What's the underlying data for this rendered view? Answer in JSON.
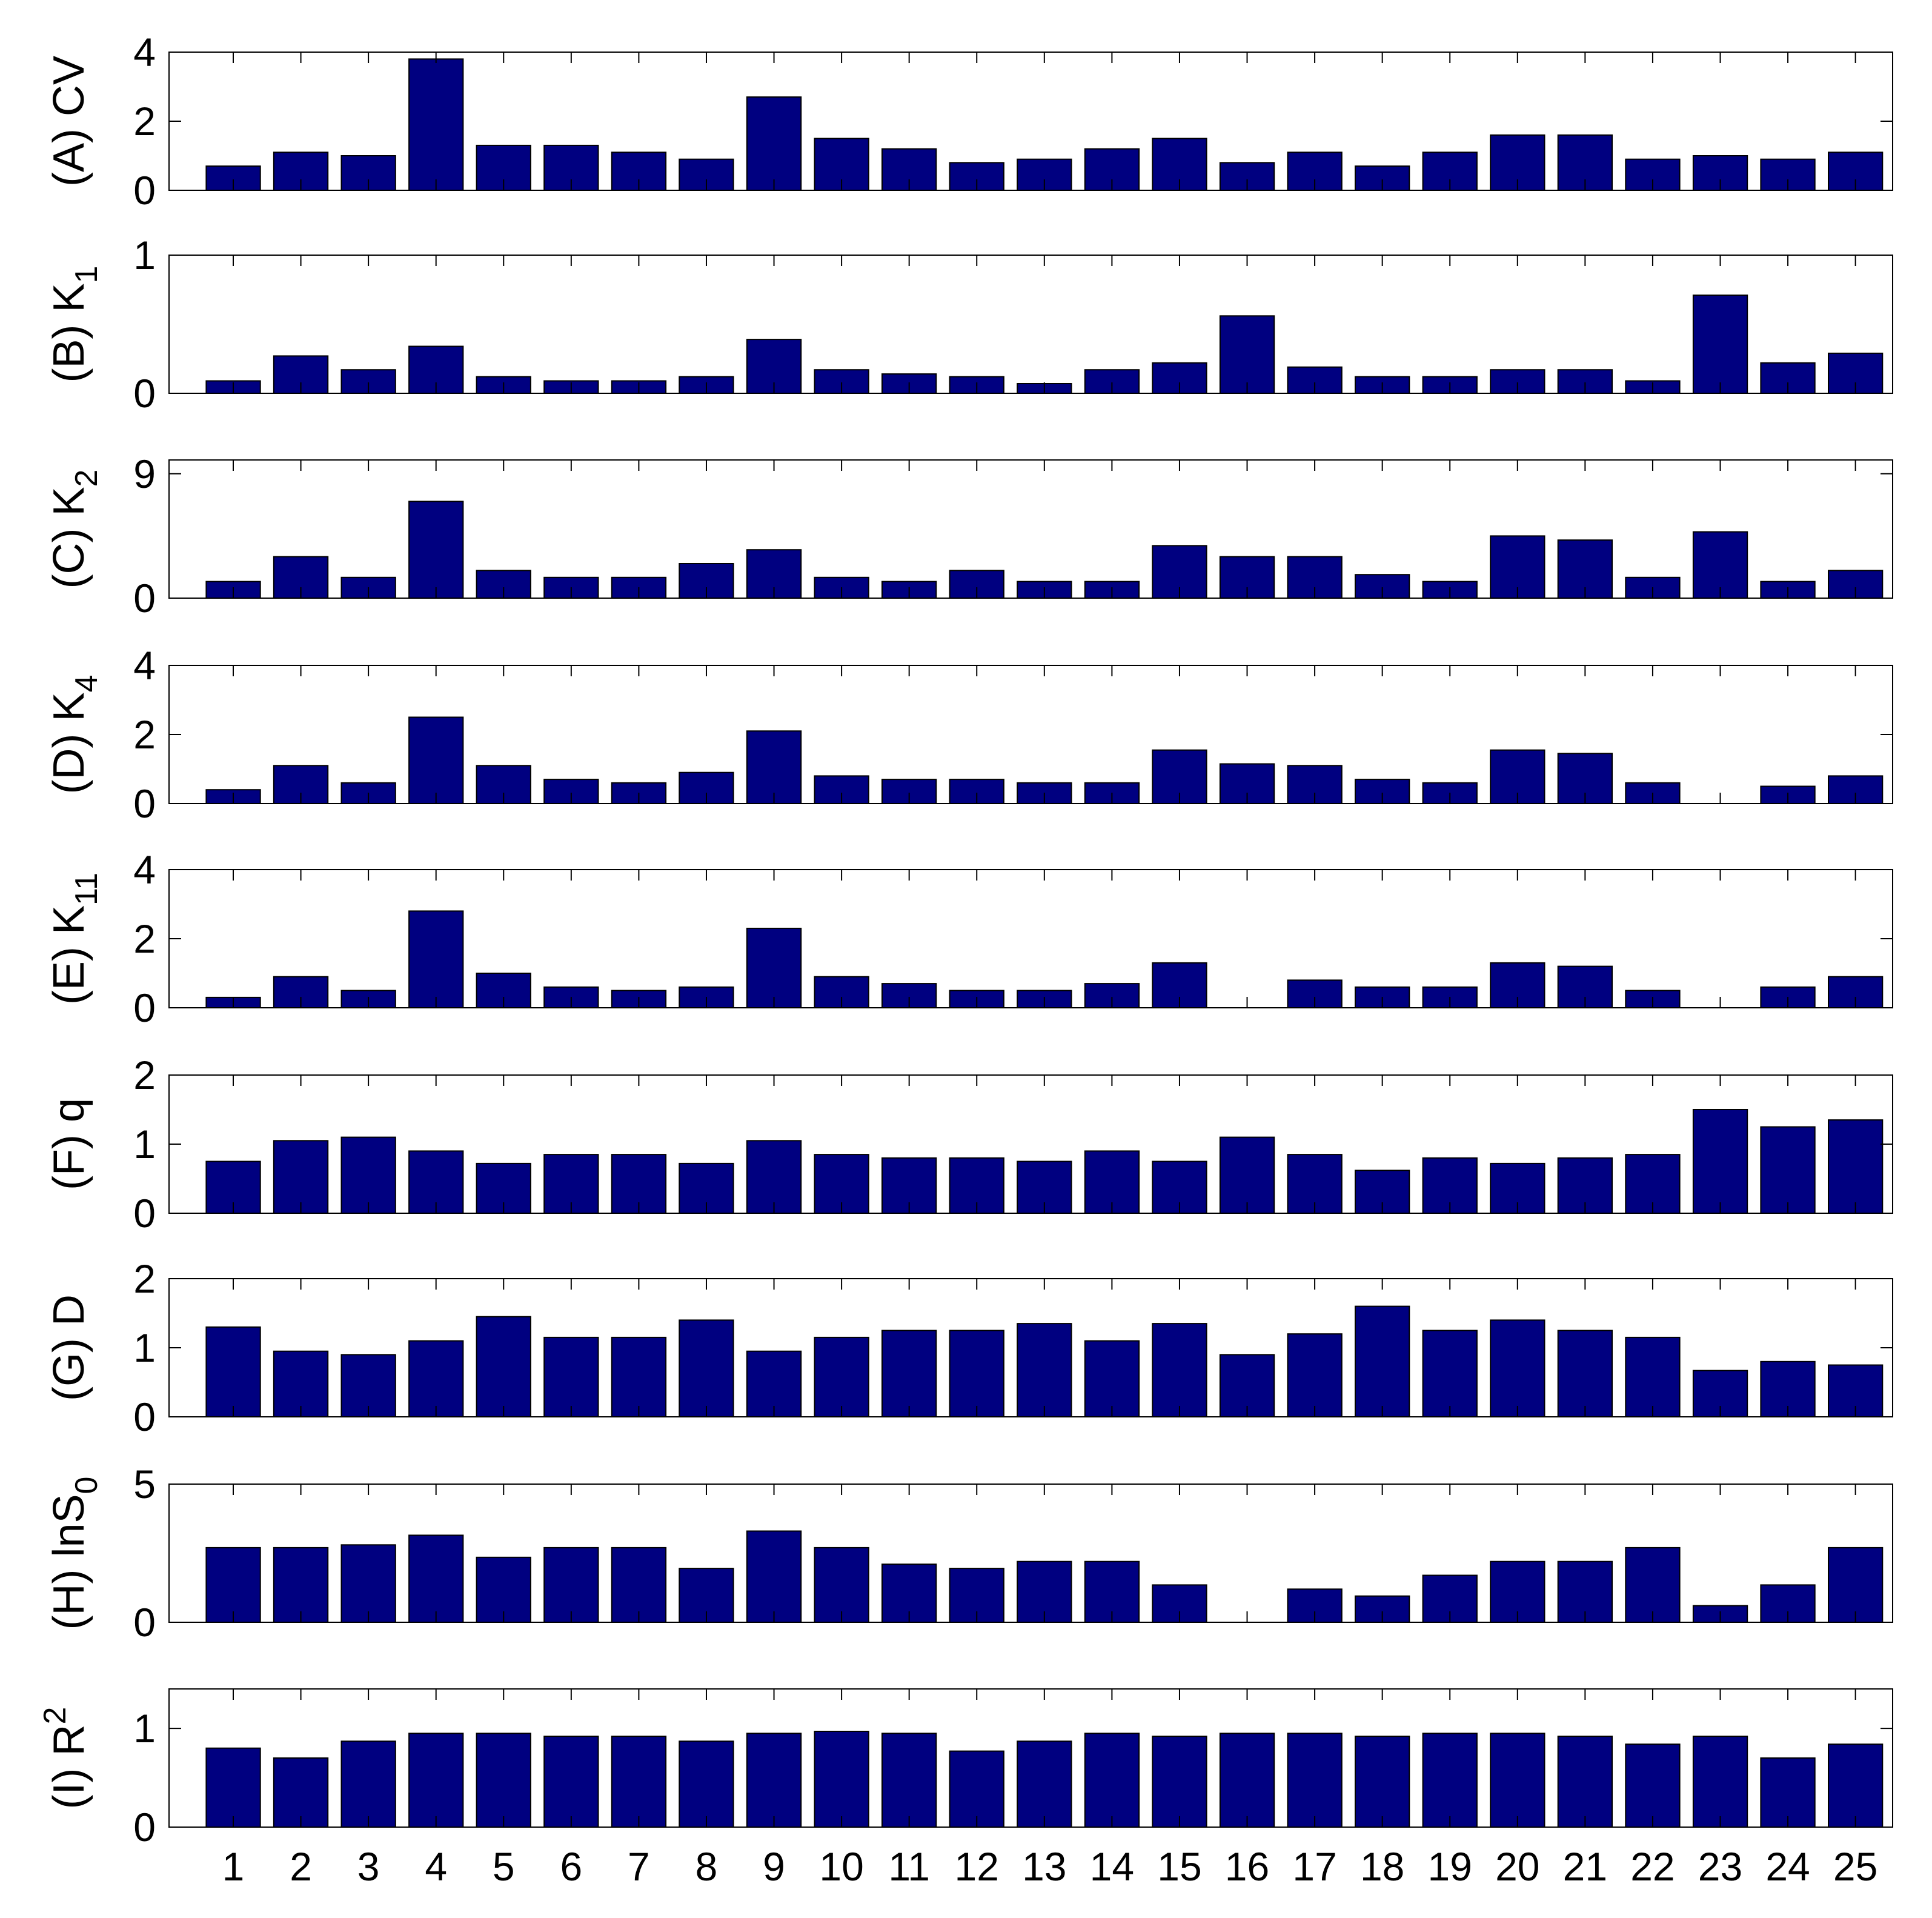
{
  "chart_data": {
    "type": "bar",
    "bar_color": "#000080",
    "categories": [
      "1",
      "2",
      "3",
      "4",
      "5",
      "6",
      "7",
      "8",
      "9",
      "10",
      "11",
      "12",
      "13",
      "14",
      "15",
      "16",
      "17",
      "18",
      "19",
      "20",
      "21",
      "22",
      "23",
      "24",
      "25"
    ],
    "panels": [
      {
        "label_main": "(A) CV",
        "label_sub": "",
        "label_sup": "",
        "ylim": [
          0,
          4
        ],
        "yticks": [
          "0",
          "2",
          "4"
        ],
        "ytick_values": [
          0,
          2,
          4
        ],
        "values": [
          0.7,
          1.1,
          1.0,
          3.8,
          1.3,
          1.3,
          1.1,
          0.9,
          2.7,
          1.5,
          1.2,
          0.8,
          0.9,
          1.2,
          1.5,
          0.8,
          1.1,
          0.7,
          1.1,
          1.6,
          1.6,
          0.9,
          1.0,
          0.9,
          1.1
        ]
      },
      {
        "label_main": "(B) K",
        "label_sub": "1",
        "label_sup": "",
        "ylim": [
          0,
          1
        ],
        "yticks": [
          "0",
          "1"
        ],
        "ytick_values": [
          0,
          1
        ],
        "values": [
          0.09,
          0.27,
          0.17,
          0.34,
          0.12,
          0.09,
          0.09,
          0.12,
          0.39,
          0.17,
          0.14,
          0.12,
          0.07,
          0.17,
          0.22,
          0.56,
          0.19,
          0.12,
          0.12,
          0.17,
          0.17,
          0.09,
          0.71,
          0.22,
          0.29
        ]
      },
      {
        "label_main": "(C) K",
        "label_sub": "2",
        "label_sup": "",
        "ylim": [
          0,
          10
        ],
        "yticks": [
          "0",
          "9"
        ],
        "ytick_values": [
          0,
          9
        ],
        "values": [
          1.2,
          3.0,
          1.5,
          7.0,
          2.0,
          1.5,
          1.5,
          2.5,
          3.5,
          1.5,
          1.2,
          2.0,
          1.2,
          1.2,
          3.8,
          3.0,
          3.0,
          1.7,
          1.2,
          4.5,
          4.2,
          1.5,
          4.8,
          1.2,
          2.0
        ]
      },
      {
        "label_main": "(D) K",
        "label_sub": "4",
        "label_sup": "",
        "ylim": [
          0,
          4
        ],
        "yticks": [
          "0",
          "2",
          "4"
        ],
        "ytick_values": [
          0,
          2,
          4
        ],
        "values": [
          0.4,
          1.1,
          0.6,
          2.5,
          1.1,
          0.7,
          0.6,
          0.9,
          2.1,
          0.8,
          0.7,
          0.7,
          0.6,
          0.6,
          1.55,
          1.15,
          1.1,
          0.7,
          0.6,
          1.55,
          1.45,
          0.6,
          0,
          0.5,
          0.8
        ]
      },
      {
        "label_main": "(E) K",
        "label_sub": "11",
        "label_sup": "",
        "ylim": [
          0,
          4
        ],
        "yticks": [
          "0",
          "2",
          "4"
        ],
        "ytick_values": [
          0,
          2,
          4
        ],
        "values": [
          0.3,
          0.9,
          0.5,
          2.8,
          1.0,
          0.6,
          0.5,
          0.6,
          2.3,
          0.9,
          0.7,
          0.5,
          0.5,
          0.7,
          1.3,
          0,
          0.8,
          0.6,
          0.6,
          1.3,
          1.2,
          0.5,
          0,
          0.6,
          0.9
        ]
      },
      {
        "label_main": "(F) q",
        "label_sub": "",
        "label_sup": "",
        "ylim": [
          0,
          2
        ],
        "yticks": [
          "0",
          "1",
          "2"
        ],
        "ytick_values": [
          0,
          1,
          2
        ],
        "values": [
          0.75,
          1.05,
          1.1,
          0.9,
          0.72,
          0.85,
          0.85,
          0.72,
          1.05,
          0.85,
          0.8,
          0.8,
          0.75,
          0.9,
          0.75,
          1.1,
          0.85,
          0.62,
          0.8,
          0.72,
          0.8,
          0.85,
          1.5,
          1.25,
          1.35
        ]
      },
      {
        "label_main": "(G) D",
        "label_sub": "",
        "label_sup": "",
        "ylim": [
          0,
          2
        ],
        "yticks": [
          "0",
          "1",
          "2"
        ],
        "ytick_values": [
          0,
          1,
          2
        ],
        "values": [
          1.3,
          0.95,
          0.9,
          1.1,
          1.45,
          1.15,
          1.15,
          1.4,
          0.95,
          1.15,
          1.25,
          1.25,
          1.35,
          1.1,
          1.35,
          0.9,
          1.2,
          1.6,
          1.25,
          1.4,
          1.25,
          1.15,
          0.67,
          0.8,
          0.75
        ]
      },
      {
        "label_main": "(H) lnS",
        "label_sub": "0",
        "label_sup": "",
        "ylim": [
          0,
          5
        ],
        "yticks": [
          "0",
          "5"
        ],
        "ytick_values": [
          0,
          5
        ],
        "values": [
          2.7,
          2.7,
          2.8,
          3.15,
          2.35,
          2.7,
          2.7,
          1.95,
          3.3,
          2.7,
          2.1,
          1.95,
          2.2,
          2.2,
          1.35,
          0,
          1.2,
          0.95,
          1.7,
          2.2,
          2.2,
          2.7,
          0.6,
          1.35,
          2.7
        ]
      },
      {
        "label_main": "(I) R",
        "label_sub": "",
        "label_sup": "2",
        "ylim": [
          0,
          1.4
        ],
        "yticks": [
          "0",
          "1"
        ],
        "ytick_values": [
          0,
          1
        ],
        "values": [
          0.8,
          0.7,
          0.87,
          0.95,
          0.95,
          0.92,
          0.92,
          0.87,
          0.95,
          0.97,
          0.95,
          0.77,
          0.87,
          0.95,
          0.92,
          0.95,
          0.95,
          0.92,
          0.95,
          0.95,
          0.92,
          0.84,
          0.92,
          0.7,
          0.84
        ]
      }
    ]
  }
}
